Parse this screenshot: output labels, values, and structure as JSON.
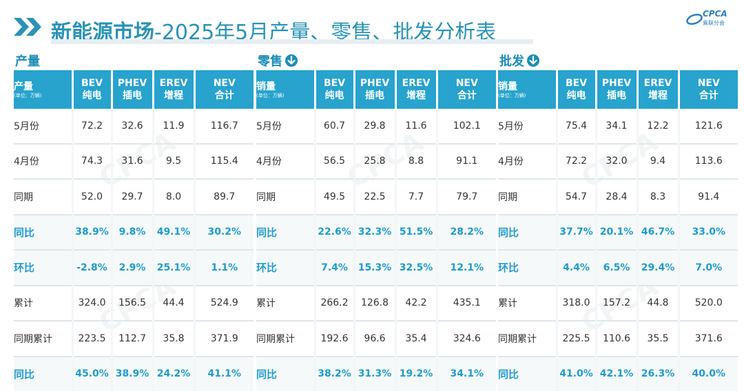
{
  "page": {
    "title_prefix": "新能源市场",
    "title_rest": "-2025年5月产量、零售、批发分析表",
    "logo_text": "CPCA",
    "logo_sub": "乘联分会"
  },
  "columns": {
    "bev": [
      "BEV",
      "纯电"
    ],
    "phev": [
      "PHEV",
      "插电"
    ],
    "erev": [
      "EREV",
      "增程"
    ],
    "nev": [
      "NEV",
      "合计"
    ]
  },
  "unit_note": "(单位：万辆)",
  "sections": [
    {
      "label": "产量",
      "header": "产量",
      "rows": [
        {
          "label": "5月份",
          "values": [
            "72.2",
            "32.6",
            "11.9",
            "116.7"
          ]
        },
        {
          "label": "4月份",
          "values": [
            "74.3",
            "31.6",
            "9.5",
            "115.4"
          ]
        },
        {
          "label": "同期",
          "values": [
            "52.0",
            "29.7",
            "8.0",
            "89.7"
          ]
        },
        {
          "label": "同比",
          "values": [
            "38.9%",
            "9.8%",
            "49.1%",
            "30.2%"
          ]
        },
        {
          "label": "环比",
          "values": [
            "-2.8%",
            "2.9%",
            "25.1%",
            "1.1%"
          ]
        },
        {
          "label": "累计",
          "values": [
            "324.0",
            "156.5",
            "44.4",
            "524.9"
          ]
        },
        {
          "label": "同期累计",
          "values": [
            "223.5",
            "112.7",
            "35.8",
            "371.9"
          ]
        },
        {
          "label": "同比",
          "values": [
            "45.0%",
            "38.9%",
            "24.2%",
            "41.1%"
          ]
        }
      ]
    },
    {
      "label": "零售",
      "header": "销量",
      "rows": [
        {
          "label": "5月份",
          "values": [
            "60.7",
            "29.8",
            "11.6",
            "102.1"
          ]
        },
        {
          "label": "4月份",
          "values": [
            "56.5",
            "25.8",
            "8.8",
            "91.1"
          ]
        },
        {
          "label": "同期",
          "values": [
            "49.5",
            "22.5",
            "7.7",
            "79.7"
          ]
        },
        {
          "label": "同比",
          "values": [
            "22.6%",
            "32.3%",
            "51.5%",
            "28.2%"
          ]
        },
        {
          "label": "环比",
          "values": [
            "7.4%",
            "15.3%",
            "32.5%",
            "12.1%"
          ]
        },
        {
          "label": "累计",
          "values": [
            "266.2",
            "126.8",
            "42.2",
            "435.1"
          ]
        },
        {
          "label": "同期累计",
          "values": [
            "192.6",
            "96.6",
            "35.4",
            "324.6"
          ]
        },
        {
          "label": "同比",
          "values": [
            "38.2%",
            "31.3%",
            "19.2%",
            "34.1%"
          ]
        }
      ]
    },
    {
      "label": "批发",
      "header": "销量",
      "rows": [
        {
          "label": "5月份",
          "values": [
            "75.4",
            "34.1",
            "12.2",
            "121.6"
          ]
        },
        {
          "label": "4月份",
          "values": [
            "72.2",
            "32.0",
            "9.4",
            "113.6"
          ]
        },
        {
          "label": "同期",
          "values": [
            "54.7",
            "28.4",
            "8.3",
            "91.4"
          ]
        },
        {
          "label": "同比",
          "values": [
            "37.7%",
            "20.1%",
            "46.7%",
            "33.0%"
          ]
        },
        {
          "label": "环比",
          "values": [
            "4.4%",
            "6.5%",
            "29.4%",
            "7.0%"
          ]
        },
        {
          "label": "累计",
          "values": [
            "318.0",
            "157.2",
            "44.8",
            "520.0"
          ]
        },
        {
          "label": "同期累计",
          "values": [
            "225.5",
            "110.6",
            "35.5",
            "371.6"
          ]
        },
        {
          "label": "同比",
          "values": [
            "41.0%",
            "42.1%",
            "26.3%",
            "40.0%"
          ]
        }
      ]
    }
  ],
  "colors": {
    "title": "#2a93b5",
    "header_bg": "#27a3cd",
    "highlight": "#1f9ccc"
  }
}
